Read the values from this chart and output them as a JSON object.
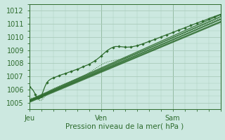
{
  "xlabel": "Pression niveau de la mer( hPa )",
  "background_color": "#cce8e0",
  "grid_color": "#aaccbb",
  "line_color": "#2d6b2d",
  "ylim": [
    1004.5,
    1012.5
  ],
  "xlim": [
    0,
    96
  ],
  "x_ticks": [
    0,
    36,
    72
  ],
  "x_tick_labels": [
    "Jeu",
    "Ven",
    "Sam"
  ],
  "y_ticks": [
    1005,
    1006,
    1007,
    1008,
    1009,
    1010,
    1011,
    1012
  ]
}
